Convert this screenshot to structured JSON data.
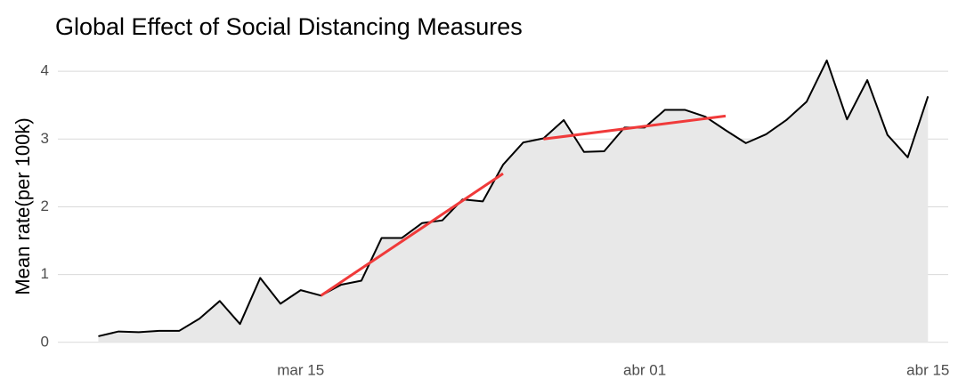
{
  "chart_data": {
    "type": "line",
    "title": "Global Effect of Social Distancing Measures",
    "y_label": "Mean rate(per 100k)",
    "x": [
      "03-05",
      "03-06",
      "03-07",
      "03-08",
      "03-09",
      "03-10",
      "03-11",
      "03-12",
      "03-13",
      "03-14",
      "03-15",
      "03-16",
      "03-17",
      "03-18",
      "03-19",
      "03-20",
      "03-21",
      "03-22",
      "03-23",
      "03-24",
      "03-25",
      "03-26",
      "03-27",
      "03-28",
      "03-29",
      "03-30",
      "03-31",
      "04-01",
      "04-02",
      "04-03",
      "04-04",
      "04-05",
      "04-06",
      "04-07",
      "04-08",
      "04-09",
      "04-10",
      "04-11",
      "04-12",
      "04-13",
      "04-14",
      "04-15"
    ],
    "series": [
      {
        "color": "#000000",
        "area_color": "#e8e8e8",
        "values": [
          0.09,
          0.16,
          0.15,
          0.17,
          0.17,
          0.35,
          0.61,
          0.27,
          0.95,
          0.57,
          0.77,
          0.69,
          0.85,
          0.91,
          1.54,
          1.54,
          1.76,
          1.8,
          2.11,
          2.08,
          2.62,
          2.95,
          3.01,
          3.28,
          2.81,
          2.82,
          3.17,
          3.17,
          3.43,
          3.43,
          3.33,
          3.13,
          2.94,
          3.07,
          3.28,
          3.55,
          4.16,
          3.29,
          3.87,
          3.06,
          2.73,
          3.63
        ]
      }
    ],
    "trend_lines": [
      {
        "color": "#f03a3a",
        "x": [
          "03-16",
          "03-25"
        ],
        "values": [
          0.69,
          2.49
        ]
      },
      {
        "color": "#f03a3a",
        "x": [
          "03-27",
          "04-05"
        ],
        "values": [
          3.0,
          3.34
        ]
      }
    ],
    "xlim": [
      "03-03",
      "04-16"
    ],
    "xticks": [
      {
        "value": "03-15",
        "label": "mar 15"
      },
      {
        "value": "04-01",
        "label": "abr 01"
      },
      {
        "value": "04-15",
        "label": "abr 15"
      }
    ],
    "ylim": [
      -0.2,
      4.33
    ],
    "yticks": [
      0,
      1,
      2,
      3,
      4
    ],
    "grid": true
  }
}
